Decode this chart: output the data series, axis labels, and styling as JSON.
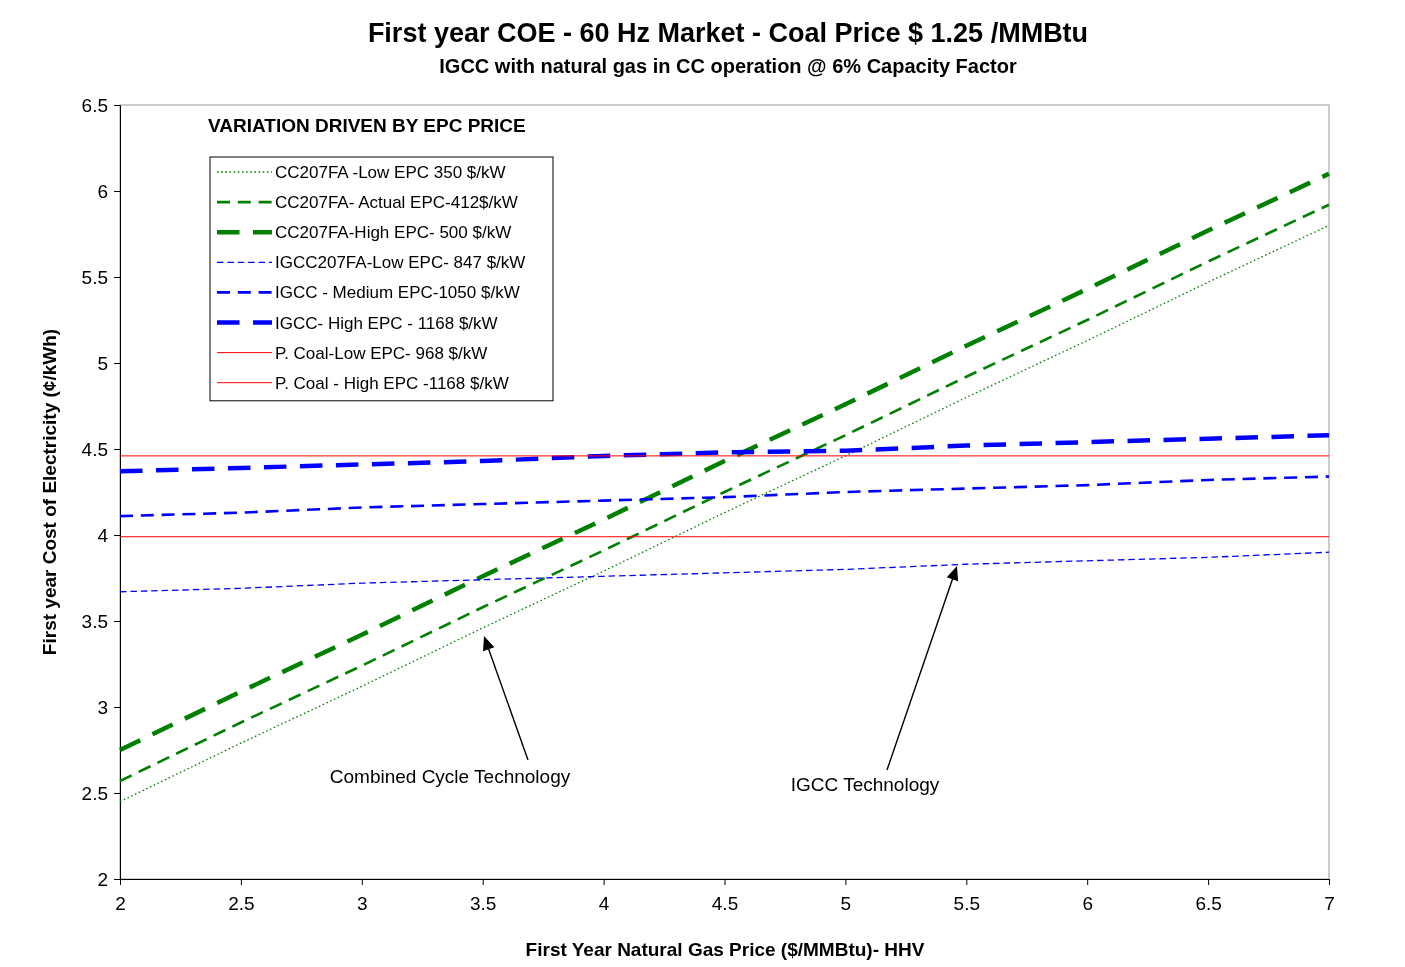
{
  "chart_data": {
    "type": "line",
    "title": "First year COE - 60 Hz Market - Coal Price $ 1.25 /MMBtu",
    "subtitle": "IGCC with natural gas in CC operation @ 6% Capacity Factor",
    "xlabel": "First Year Natural Gas Price ($/MMBtu)- HHV",
    "ylabel": "First year Cost of Electricity (¢/kWh)",
    "legend_title": "VARIATION DRIVEN BY EPC PRICE",
    "legend": "top left",
    "grid": false,
    "x": [
      2,
      2.5,
      3,
      3.5,
      4,
      4.5,
      5,
      5.5,
      6,
      6.5,
      7
    ],
    "xlim": [
      2,
      7
    ],
    "xticks": [
      2,
      2.5,
      3,
      3.5,
      4,
      4.5,
      5,
      5.5,
      6,
      6.5,
      7
    ],
    "ylim": [
      2,
      6.5
    ],
    "yticks": [
      2,
      2.5,
      3,
      3.5,
      4,
      4.5,
      5,
      5.5,
      6,
      6.5
    ],
    "series": [
      {
        "name": "CC207FA -Low EPC 350 $/kW",
        "color": "#008000",
        "line_style": "dotted",
        "values": [
          2.45,
          2.79,
          3.12,
          3.46,
          3.79,
          4.13,
          4.46,
          4.8,
          5.13,
          5.47,
          5.8
        ]
      },
      {
        "name": "CC207FA- Actual EPC-412$/kW",
        "color": "#008000",
        "line_style": "dashed",
        "values": [
          2.57,
          2.91,
          3.24,
          3.58,
          3.91,
          4.25,
          4.58,
          4.92,
          5.25,
          5.59,
          5.92
        ]
      },
      {
        "name": "CC207FA-High EPC- 500 $/kW",
        "color": "#008000",
        "line_style": "dashed",
        "values": [
          2.75,
          3.09,
          3.42,
          3.76,
          4.09,
          4.43,
          4.76,
          5.1,
          5.43,
          5.77,
          6.1
        ]
      },
      {
        "name": "IGCC207FA-Low EPC- 847 $/kW",
        "color": "#0000ff",
        "line_style": "dashed",
        "values": [
          3.67,
          3.69,
          3.72,
          3.74,
          3.76,
          3.78,
          3.8,
          3.83,
          3.85,
          3.87,
          3.9
        ]
      },
      {
        "name": "IGCC - Medium EPC-1050 $/kW",
        "color": "#0000ff",
        "line_style": "dashed",
        "values": [
          4.11,
          4.13,
          4.16,
          4.18,
          4.2,
          4.22,
          4.25,
          4.27,
          4.29,
          4.32,
          4.34
        ]
      },
      {
        "name": "IGCC- High EPC - 1168 $/kW",
        "color": "#0000ff",
        "line_style": "dashed",
        "values": [
          4.37,
          4.39,
          4.41,
          4.43,
          4.46,
          4.48,
          4.49,
          4.52,
          4.54,
          4.56,
          4.58
        ]
      },
      {
        "name": "P. Coal-Low EPC- 968 $/kW",
        "color": "#ff0000",
        "line_style": "solid",
        "values": [
          3.99,
          3.99,
          3.99,
          3.99,
          3.99,
          3.99,
          3.99,
          3.99,
          3.99,
          3.99,
          3.99
        ]
      },
      {
        "name": "P. Coal - High EPC -1168 $/kW",
        "color": "#ff0000",
        "line_style": "solid",
        "values": [
          4.46,
          4.46,
          4.46,
          4.46,
          4.46,
          4.46,
          4.46,
          4.46,
          4.46,
          4.46,
          4.46
        ]
      }
    ],
    "annotations": [
      "Combined Cycle Technology",
      "IGCC Technology"
    ]
  }
}
